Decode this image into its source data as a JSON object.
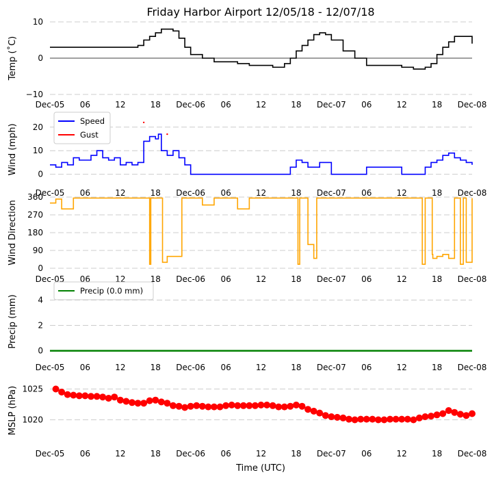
{
  "title": "Friday Harbor Airport 12/05/18 - 12/07/18",
  "xlabel": "Time (UTC)",
  "x_tick_labels": [
    "Dec-05",
    "06",
    "12",
    "18",
    "Dec-06",
    "06",
    "12",
    "18",
    "Dec-07",
    "06",
    "12",
    "18",
    "Dec-08"
  ],
  "colors": {
    "temp": "#000000",
    "speed": "#0000ff",
    "gust": "#ff0000",
    "direction": "#ffa500",
    "precip": "#008000",
    "mslp": "#ff0000",
    "grid": "#cccccc"
  },
  "chart_data": [
    {
      "type": "line",
      "name": "temperature",
      "ylabel": "Temp (˚C)",
      "ylim": [
        -10,
        10
      ],
      "yticks": [
        "−10",
        "0",
        "10"
      ],
      "xlim_hours": [
        0,
        72
      ],
      "series": [
        {
          "name": "Temp",
          "x_hours": [
            0,
            2,
            4,
            6,
            8,
            10,
            12,
            14,
            15,
            16,
            17,
            18,
            19,
            20,
            21,
            22,
            23,
            24,
            26,
            28,
            30,
            32,
            34,
            36,
            38,
            40,
            41,
            42,
            43,
            44,
            45,
            46,
            47,
            48,
            50,
            52,
            54,
            56,
            58,
            60,
            62,
            64,
            65,
            66,
            67,
            68,
            69,
            70,
            71,
            72
          ],
          "values": [
            3,
            3,
            3,
            3,
            3,
            3,
            3,
            3,
            3.5,
            5,
            6,
            7,
            8,
            8,
            7.5,
            5.5,
            3,
            1,
            0,
            -1,
            -1,
            -1.5,
            -2,
            -2,
            -2.5,
            -1.5,
            0,
            2,
            3.5,
            5,
            6.5,
            7,
            6.5,
            5,
            2,
            0,
            -2,
            -2,
            -2,
            -2.5,
            -3,
            -2.5,
            -1.5,
            1,
            3,
            4.5,
            6,
            6,
            6,
            4
          ]
        }
      ]
    },
    {
      "type": "line",
      "name": "wind_speed",
      "ylabel": "Wind (mph)",
      "ylim": [
        -3,
        24
      ],
      "yticks": [
        "0",
        "10",
        "20"
      ],
      "xlim_hours": [
        0,
        72
      ],
      "legend": [
        "Speed",
        "Gust"
      ],
      "series": [
        {
          "name": "Speed",
          "x_hours": [
            0,
            1,
            2,
            3,
            4,
            5,
            6,
            7,
            8,
            9,
            10,
            11,
            12,
            13,
            14,
            15,
            16,
            17,
            18,
            18.5,
            19,
            20,
            21,
            22,
            23,
            24,
            26,
            28,
            30,
            32,
            34,
            36,
            38,
            40,
            41,
            42,
            43,
            44,
            46,
            48,
            50,
            52,
            54,
            56,
            58,
            60,
            62,
            64,
            65,
            66,
            67,
            68,
            69,
            70,
            71,
            72
          ],
          "values": [
            4,
            3,
            5,
            4,
            7,
            6,
            6,
            8,
            10,
            7,
            6,
            7,
            4,
            5,
            4,
            5,
            14,
            16,
            15,
            17,
            10,
            8,
            10,
            7,
            4,
            0,
            0,
            0,
            0,
            0,
            0,
            0,
            0,
            0,
            3,
            6,
            5,
            3,
            5,
            0,
            0,
            0,
            3,
            3,
            3,
            0,
            0,
            3,
            5,
            6,
            8,
            9,
            7,
            6,
            5,
            4
          ]
        },
        {
          "name": "Gust",
          "x_hours": [
            16,
            20
          ],
          "values": [
            22,
            17
          ]
        }
      ]
    },
    {
      "type": "line",
      "name": "wind_direction",
      "ylabel": "Wind Direction",
      "ylim": [
        0,
        360
      ],
      "yticks": [
        "0",
        "90",
        "180",
        "270",
        "360"
      ],
      "xlim_hours": [
        0,
        72
      ],
      "series": [
        {
          "name": "Direction",
          "x_hours": [
            0,
            1,
            2,
            4,
            8,
            12,
            14,
            16,
            16.8,
            17,
            17.2,
            19,
            19.2,
            20,
            22,
            22.5,
            24,
            26,
            28,
            30,
            32,
            34,
            36,
            40,
            42,
            42.3,
            42.6,
            43.5,
            44,
            45,
            45.5,
            46,
            47,
            52,
            58,
            63,
            63.5,
            64,
            65,
            65.2,
            65.3,
            66,
            67,
            68,
            69,
            70,
            70.5,
            71,
            72
          ],
          "values": [
            330,
            350,
            300,
            355,
            355,
            355,
            355,
            355,
            355,
            20,
            355,
            355,
            30,
            60,
            60,
            355,
            355,
            320,
            355,
            355,
            300,
            355,
            355,
            355,
            355,
            20,
            355,
            355,
            120,
            50,
            355,
            355,
            355,
            355,
            355,
            355,
            20,
            355,
            355,
            70,
            50,
            60,
            70,
            50,
            355,
            20,
            355,
            30,
            355
          ]
        }
      ]
    },
    {
      "type": "line",
      "name": "precip",
      "ylabel": "Precip (mm)",
      "ylim": [
        -0.4,
        5
      ],
      "yticks": [
        "0",
        "2",
        "4"
      ],
      "xlim_hours": [
        0,
        72
      ],
      "legend": [
        "Precip (0.0 mm)"
      ],
      "series": [
        {
          "name": "Precip (0.0 mm)",
          "x_hours": [
            0,
            72
          ],
          "values": [
            0,
            0
          ]
        }
      ]
    },
    {
      "type": "scatter",
      "name": "mslp",
      "ylabel": "MSLP (hPa)",
      "ylim": [
        1016.5,
        1026.5
      ],
      "yticks": [
        "1020",
        "1025"
      ],
      "xlim_hours": [
        0,
        72
      ],
      "series": [
        {
          "name": "MSLP",
          "x_hours": [
            1,
            2,
            3,
            4,
            5,
            6,
            7,
            8,
            9,
            10,
            11,
            12,
            13,
            14,
            15,
            16,
            17,
            18,
            19,
            20,
            21,
            22,
            23,
            24,
            25,
            26,
            27,
            28,
            29,
            30,
            31,
            32,
            33,
            34,
            35,
            36,
            37,
            38,
            39,
            40,
            41,
            42,
            43,
            44,
            45,
            46,
            47,
            48,
            49,
            50,
            51,
            52,
            53,
            54,
            55,
            56,
            57,
            58,
            59,
            60,
            61,
            62,
            63,
            64,
            65,
            66,
            67,
            68,
            69,
            70,
            71,
            72
          ],
          "values": [
            1025,
            1024.5,
            1024.1,
            1024,
            1023.9,
            1023.9,
            1023.8,
            1023.8,
            1023.7,
            1023.5,
            1023.7,
            1023.2,
            1023,
            1022.8,
            1022.7,
            1022.7,
            1023.1,
            1023.2,
            1022.9,
            1022.7,
            1022.3,
            1022.2,
            1022,
            1022.2,
            1022.3,
            1022.2,
            1022.1,
            1022.1,
            1022.1,
            1022.3,
            1022.4,
            1022.3,
            1022.3,
            1022.3,
            1022.3,
            1022.4,
            1022.4,
            1022.3,
            1022.1,
            1022.1,
            1022.2,
            1022.4,
            1022.2,
            1021.7,
            1021.4,
            1021.1,
            1020.7,
            1020.5,
            1020.4,
            1020.3,
            1020.1,
            1020,
            1020.1,
            1020.1,
            1020.1,
            1020,
            1020,
            1020.1,
            1020.1,
            1020.1,
            1020.1,
            1020,
            1020.3,
            1020.5,
            1020.6,
            1020.8,
            1021,
            1021.5,
            1021.2,
            1020.9,
            1020.7,
            1021
          ]
        }
      ]
    }
  ]
}
